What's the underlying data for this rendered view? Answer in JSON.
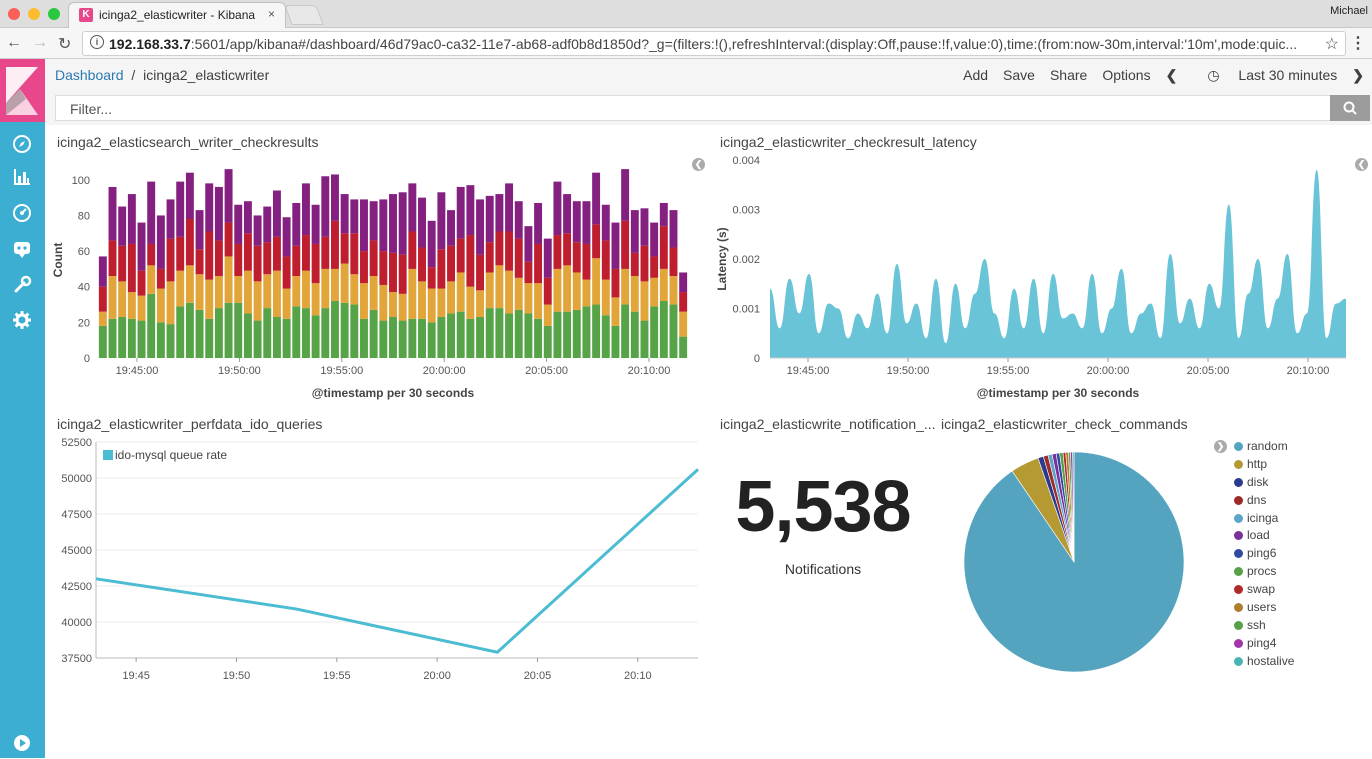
{
  "browser": {
    "tab_title": "icinga2_elasticwriter - Kibana",
    "tab_close": "×",
    "favicon_letter": "K",
    "user": "Michael",
    "url_host": "192.168.33.7",
    "url_rest": ":5601/app/kibana#/dashboard/46d79ac0-ca32-11e7-ab68-adf0b8d1850d?_g=(filters:!(),refreshInterval:(display:Off,pause:!f,value:0),time:(from:now-30m,interval:'10m',mode:quic..."
  },
  "kibana": {
    "breadcrumb_root": "Dashboard",
    "breadcrumb_sep": "/",
    "breadcrumb_current": "icinga2_elasticwriter",
    "menu": {
      "add": "Add",
      "save": "Save",
      "share": "Share",
      "options": "Options",
      "time": "Last 30 minutes"
    },
    "filter_placeholder": "Filter..."
  },
  "panels": {
    "checkresults_title": "icinga2_elasticsearch_writer_checkresults",
    "latency_title": "icinga2_elasticwriter_checkresult_latency",
    "ido_title": "icinga2_elasticwriter_perfdata_ido_queries",
    "notification_title": "icinga2_elasticwrite_notification_...",
    "commands_title": "icinga2_elasticwriter_check_commands",
    "metric_value": "5,538",
    "metric_label": "Notifications"
  },
  "colors": {
    "sidebar": "#3caed2",
    "logo": "#e8488b",
    "green": "#57a348",
    "orange": "#e2a53a",
    "red": "#be1e2d",
    "purple": "#842080",
    "latency": "#6ac4d8",
    "line": "#4bbcd2"
  },
  "chart_data": [
    {
      "type": "bar",
      "stacked": true,
      "xlabel": "@timestamp per 30 seconds",
      "ylabel": "Count",
      "ylim": [
        0,
        110
      ],
      "yticks": [
        0,
        20,
        40,
        60,
        80,
        100
      ],
      "xtick_labels": [
        "19:45:00",
        "19:50:00",
        "19:55:00",
        "20:00:00",
        "20:05:00",
        "20:10:00"
      ],
      "categories_count": 61,
      "series": [
        {
          "color": "#57a348",
          "values": [
            18,
            22,
            23,
            22,
            21,
            36,
            20,
            19,
            29,
            31,
            27,
            22,
            28,
            31,
            31,
            25,
            21,
            28,
            23,
            22,
            29,
            28,
            24,
            28,
            32,
            31,
            30,
            22,
            27,
            21,
            23,
            21,
            22,
            22,
            20,
            23,
            25,
            26,
            22,
            23,
            28,
            28,
            25,
            27,
            25,
            22,
            18,
            26,
            26,
            27,
            29,
            30,
            24,
            18,
            30,
            26,
            21,
            29,
            32,
            30,
            12
          ]
        },
        {
          "color": "#e2a53a",
          "values": [
            8,
            24,
            20,
            15,
            14,
            16,
            19,
            24,
            20,
            21,
            20,
            22,
            18,
            26,
            15,
            24,
            22,
            19,
            26,
            17,
            17,
            21,
            18,
            22,
            18,
            22,
            17,
            20,
            19,
            20,
            14,
            15,
            28,
            21,
            19,
            16,
            18,
            22,
            18,
            15,
            20,
            24,
            24,
            18,
            17,
            20,
            12,
            24,
            26,
            21,
            15,
            26,
            20,
            16,
            20,
            20,
            22,
            16,
            18,
            16,
            14
          ]
        },
        {
          "color": "#be1e2d",
          "values": [
            14,
            20,
            20,
            27,
            14,
            12,
            11,
            24,
            19,
            26,
            14,
            27,
            20,
            19,
            18,
            21,
            20,
            18,
            19,
            18,
            17,
            20,
            22,
            18,
            27,
            17,
            23,
            18,
            20,
            19,
            22,
            22,
            21,
            19,
            12,
            22,
            20,
            19,
            29,
            20,
            17,
            19,
            22,
            22,
            12,
            22,
            15,
            19,
            18,
            17,
            20,
            19,
            22,
            16,
            27,
            13,
            20,
            12,
            24,
            16,
            11
          ]
        },
        {
          "color": "#842080",
          "values": [
            17,
            30,
            22,
            28,
            27,
            35,
            30,
            22,
            31,
            26,
            22,
            27,
            30,
            30,
            22,
            18,
            17,
            20,
            26,
            22,
            24,
            29,
            22,
            34,
            26,
            22,
            19,
            29,
            22,
            29,
            33,
            35,
            27,
            28,
            26,
            32,
            20,
            29,
            28,
            31,
            26,
            21,
            27,
            21,
            20,
            23,
            22,
            30,
            22,
            23,
            24,
            29,
            20,
            26,
            29,
            24,
            21,
            19,
            13,
            21,
            11
          ]
        }
      ]
    },
    {
      "type": "area",
      "xlabel": "@timestamp per 30 seconds",
      "ylabel": "Latency (s)",
      "ylim": [
        0,
        0.004
      ],
      "yticks": [
        0,
        0.001,
        0.002,
        0.003,
        0.004
      ],
      "xtick_labels": [
        "19:45:00",
        "19:50:00",
        "19:55:00",
        "20:00:00",
        "20:05:00",
        "20:10:00"
      ],
      "values": [
        0.0014,
        0.0006,
        0.0016,
        0.0009,
        0.0017,
        0.0005,
        0.0011,
        0.001,
        0.0004,
        0.0009,
        0.0006,
        0.0013,
        0.0005,
        0.0019,
        0.0007,
        0.0011,
        0.0004,
        0.0016,
        0.0003,
        0.0015,
        0.0006,
        0.0013,
        0.002,
        0.0009,
        0.0004,
        0.0014,
        0.0006,
        0.0016,
        0.0005,
        0.0017,
        0.0008,
        0.0009,
        0.0006,
        0.0017,
        0.0005,
        0.001,
        0.0018,
        0.0005,
        0.0009,
        0.0011,
        0.0004,
        0.0021,
        0.0007,
        0.0012,
        0.0006,
        0.0015,
        0.001,
        0.0031,
        0.0004,
        0.0013,
        0.002,
        0.0006,
        0.0012,
        0.0021,
        0.0005,
        0.0009,
        0.0038,
        0.0004,
        0.0011,
        0.0012
      ]
    },
    {
      "type": "line",
      "ylim": [
        37500,
        52500
      ],
      "yticks": [
        37500,
        40000,
        42500,
        45000,
        47500,
        50000,
        52500
      ],
      "ytick_labels": [
        "37500",
        "40000",
        "42500",
        "45000",
        "47500",
        "50000",
        "52500"
      ],
      "xtick_labels": [
        "19:45",
        "19:50",
        "19:55",
        "20:00",
        "20:05",
        "20:10"
      ],
      "series": [
        {
          "name": "ido-mysql queue rate",
          "color": "#4bbcd2",
          "x": [
            "19:43",
            "19:53",
            "20:03",
            "20:13"
          ],
          "values": [
            43000,
            40900,
            37900,
            50600
          ]
        }
      ]
    },
    {
      "type": "pie",
      "labels": [
        "random",
        "http",
        "disk",
        "dns",
        "icinga",
        "load",
        "ping6",
        "procs",
        "swap",
        "users",
        "ssh",
        "ping4",
        "hostalive"
      ],
      "colors": [
        "#54a4bf",
        "#b59a34",
        "#2a3a8c",
        "#9e2a2a",
        "#5aa5c8",
        "#7a2f9a",
        "#2f4aa0",
        "#56a046",
        "#b02a2a",
        "#b07d2a",
        "#56a046",
        "#a435a8",
        "#4ab5b0"
      ],
      "values": [
        90.5,
        4.2,
        0.8,
        0.7,
        0.6,
        0.6,
        0.5,
        0.5,
        0.4,
        0.4,
        0.3,
        0.3,
        0.2
      ]
    }
  ]
}
